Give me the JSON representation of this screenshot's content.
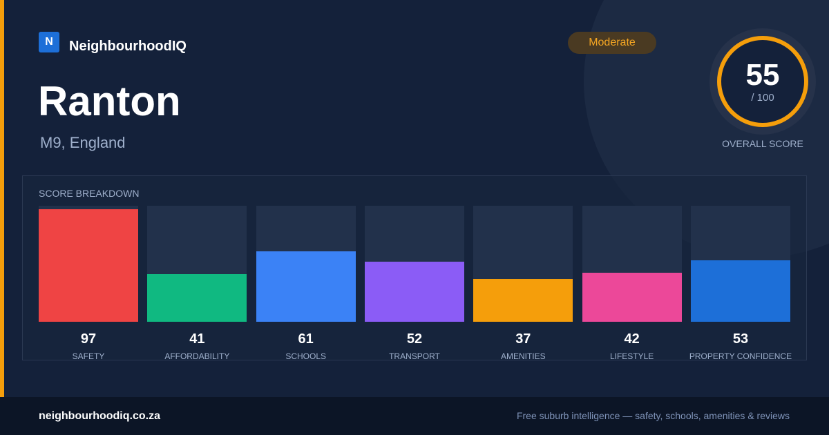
{
  "brand": {
    "logo_letter": "N",
    "name": "NeighbourhoodIQ"
  },
  "place": {
    "name": "Ranton",
    "location": "M9, England"
  },
  "badge": "Moderate",
  "score": {
    "value": 55,
    "max_label": "/ 100",
    "caption": "OVERALL SCORE"
  },
  "chart_data": {
    "type": "bar",
    "title": "SCORE BREAKDOWN",
    "categories": [
      "SAFETY",
      "AFFORDABILITY",
      "SCHOOLS",
      "TRANSPORT",
      "AMENITIES",
      "LIFESTYLE",
      "PROPERTY CONFIDENCE"
    ],
    "values": [
      97,
      41,
      61,
      52,
      37,
      42,
      53
    ],
    "colors": [
      "#ef4444",
      "#10b981",
      "#3b82f6",
      "#8b5cf6",
      "#f59e0b",
      "#ec4899",
      "#1d6fd8"
    ],
    "ylim": [
      0,
      100
    ]
  },
  "footer": {
    "site": "neighbourhoodiq.co.za",
    "tagline": "Free suburb intelligence — safety, schools, amenities & reviews"
  }
}
